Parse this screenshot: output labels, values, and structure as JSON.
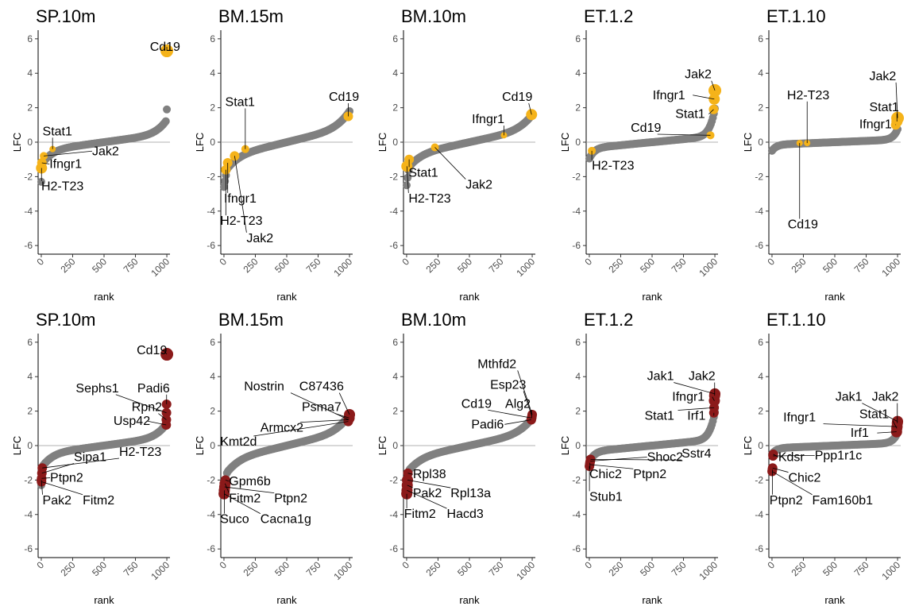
{
  "chart_data": [
    {
      "type": "scatter",
      "title": "SP.10m",
      "xlabel": "rank",
      "ylabel": "LFC",
      "xlim": [
        -25,
        1025
      ],
      "ylim": [
        -6.5,
        6.5
      ],
      "xticks": [
        0,
        250,
        500,
        750,
        1000
      ],
      "yticks": [
        -6,
        -4,
        -2,
        0,
        2,
        4,
        6
      ],
      "hline": 0,
      "highlight_color": "#F5B31A",
      "curve": "sp10m",
      "highlight": [
        {
          "label": "Cd19",
          "x": 1000,
          "y": 5.3,
          "r": 8
        },
        {
          "label": "Stat1",
          "x": 90,
          "y": -0.4,
          "r": 4
        },
        {
          "label": "Jak2",
          "x": 20,
          "y": -0.8,
          "r": 5
        },
        {
          "label": "Ifngr1",
          "x": 5,
          "y": -1.2,
          "r": 6
        },
        {
          "label": "H2-T23",
          "x": 2,
          "y": -1.5,
          "r": 7
        }
      ],
      "labels": [
        {
          "text": "Cd19",
          "x": 865,
          "y": 5.3
        },
        {
          "text": "Stat1",
          "x": 10,
          "y": 0.4
        },
        {
          "text": "Jak2",
          "x": 405,
          "y": -0.75
        },
        {
          "text": "Ifngr1",
          "x": 65,
          "y": -1.5
        },
        {
          "text": "H2-T23",
          "x": 0,
          "y": -2.8
        }
      ]
    },
    {
      "type": "scatter",
      "title": "BM.15m",
      "xlabel": "rank",
      "ylabel": "LFC",
      "xlim": [
        -25,
        1025
      ],
      "ylim": [
        -6.5,
        6.5
      ],
      "xticks": [
        0,
        250,
        500,
        750,
        1000
      ],
      "yticks": [
        -6,
        -4,
        -2,
        0,
        2,
        4,
        6
      ],
      "hline": 0,
      "highlight_color": "#F5B31A",
      "curve": "bm15m",
      "highlight": [
        {
          "label": "Cd19",
          "x": 990,
          "y": 1.5,
          "r": 6
        },
        {
          "label": "Stat1",
          "x": 170,
          "y": -0.4,
          "r": 5
        },
        {
          "label": "Jak2",
          "x": 85,
          "y": -0.8,
          "r": 6
        },
        {
          "label": "Ifngr1",
          "x": 30,
          "y": -1.2,
          "r": 6
        },
        {
          "label": "H2-T23",
          "x": 15,
          "y": -1.6,
          "r": 6
        }
      ],
      "labels": [
        {
          "text": "Cd19",
          "x": 835,
          "y": 2.4
        },
        {
          "text": "Stat1",
          "x": 10,
          "y": 2.1
        },
        {
          "text": "Ifngr1",
          "x": 0,
          "y": -3.5
        },
        {
          "text": "H2-T23",
          "x": -30,
          "y": -4.8
        },
        {
          "text": "Jak2",
          "x": 180,
          "y": -5.8
        }
      ]
    },
    {
      "type": "scatter",
      "title": "BM.10m",
      "xlabel": "rank",
      "ylabel": "LFC",
      "xlim": [
        -25,
        1025
      ],
      "ylim": [
        -6.5,
        6.5
      ],
      "xticks": [
        0,
        250,
        500,
        750,
        1000
      ],
      "yticks": [
        -6,
        -4,
        -2,
        0,
        2,
        4,
        6
      ],
      "hline": 0,
      "highlight_color": "#F5B31A",
      "curve": "bm10m",
      "highlight": [
        {
          "label": "Cd19",
          "x": 995,
          "y": 1.6,
          "r": 7
        },
        {
          "label": "Ifngr1",
          "x": 775,
          "y": 0.4,
          "r": 4
        },
        {
          "label": "Jak2",
          "x": 225,
          "y": -0.3,
          "r": 5
        },
        {
          "label": "Stat1",
          "x": 20,
          "y": -1.0,
          "r": 6
        },
        {
          "label": "H2-T23",
          "x": 2,
          "y": -1.4,
          "r": 7
        }
      ],
      "labels": [
        {
          "text": "Cd19",
          "x": 760,
          "y": 2.4
        },
        {
          "text": "Ifngr1",
          "x": 520,
          "y": 1.1
        },
        {
          "text": "Jak2",
          "x": 470,
          "y": -2.7
        },
        {
          "text": "Stat1",
          "x": 15,
          "y": -2.0
        },
        {
          "text": "H2-T23",
          "x": 15,
          "y": -3.5
        }
      ]
    },
    {
      "type": "scatter",
      "title": "ET.1.2",
      "xlabel": "rank",
      "ylabel": "LFC",
      "xlim": [
        -25,
        1025
      ],
      "ylim": [
        -6.5,
        6.5
      ],
      "xticks": [
        0,
        250,
        500,
        750,
        1000
      ],
      "yticks": [
        -6,
        -4,
        -2,
        0,
        2,
        4,
        6
      ],
      "hline": 0,
      "highlight_color": "#F5B31A",
      "curve": "et12",
      "highlight": [
        {
          "label": "Jak2",
          "x": 1000,
          "y": 3.0,
          "r": 8
        },
        {
          "label": "Ifngr1",
          "x": 995,
          "y": 2.5,
          "r": 7
        },
        {
          "label": "Stat1",
          "x": 990,
          "y": 1.9,
          "r": 6
        },
        {
          "label": "Cd19",
          "x": 965,
          "y": 0.4,
          "r": 5
        },
        {
          "label": "H2-T23",
          "x": 20,
          "y": -0.5,
          "r": 5
        }
      ],
      "labels": [
        {
          "text": "Jak2",
          "x": 760,
          "y": 3.7
        },
        {
          "text": "Ifngr1",
          "x": 505,
          "y": 2.5
        },
        {
          "text": "Stat1",
          "x": 685,
          "y": 1.4
        },
        {
          "text": "Cd19",
          "x": 330,
          "y": 0.6
        },
        {
          "text": "H2-T23",
          "x": 20,
          "y": -1.6
        }
      ]
    },
    {
      "type": "scatter",
      "title": "ET.1.10",
      "xlabel": "rank",
      "ylabel": "LFC",
      "xlim": [
        -25,
        1025
      ],
      "ylim": [
        -6.5,
        6.5
      ],
      "xticks": [
        0,
        250,
        500,
        750,
        1000
      ],
      "yticks": [
        -6,
        -4,
        -2,
        0,
        2,
        4,
        6
      ],
      "hline": 0,
      "highlight_color": "#F5B31A",
      "curve": "et110",
      "highlight": [
        {
          "label": "Jak2",
          "x": 1000,
          "y": 1.4,
          "r": 8
        },
        {
          "label": "Stat1",
          "x": 995,
          "y": 1.2,
          "r": 7
        },
        {
          "label": "Ifngr1",
          "x": 985,
          "y": 1.0,
          "r": 6
        },
        {
          "label": "H2-T23",
          "x": 280,
          "y": -0.05,
          "r": 4
        },
        {
          "label": "Cd19",
          "x": 220,
          "y": -0.05,
          "r": 4
        }
      ],
      "labels": [
        {
          "text": "Jak2",
          "x": 775,
          "y": 3.6
        },
        {
          "text": "H2-T23",
          "x": 120,
          "y": 2.5
        },
        {
          "text": "Stat1",
          "x": 775,
          "y": 1.8
        },
        {
          "text": "Ifngr1",
          "x": 695,
          "y": 0.8
        },
        {
          "text": "Cd19",
          "x": 125,
          "y": -5.0
        }
      ]
    },
    {
      "type": "scatter",
      "title": "SP.10m",
      "xlabel": "rank",
      "ylabel": "LFC",
      "xlim": [
        -25,
        1025
      ],
      "ylim": [
        -6.5,
        6.5
      ],
      "xticks": [
        0,
        250,
        500,
        750,
        1000
      ],
      "yticks": [
        -6,
        -4,
        -2,
        0,
        2,
        4,
        6
      ],
      "hline": 0,
      "highlight_color": "#8B1A1A",
      "curve": "sp10m",
      "highlight": [
        {
          "label": "Cd19",
          "x": 1000,
          "y": 5.3,
          "r": 8
        },
        {
          "label": "Padi6",
          "x": 998,
          "y": 2.4,
          "r": 6
        },
        {
          "label": "Sephs1",
          "x": 997,
          "y": 1.9,
          "r": 6
        },
        {
          "label": "Rpn2",
          "x": 996,
          "y": 1.5,
          "r": 6
        },
        {
          "label": "Usp42",
          "x": 995,
          "y": 1.2,
          "r": 6
        },
        {
          "label": "H2-T23",
          "x": 8,
          "y": -1.3,
          "r": 6
        },
        {
          "label": "Sipa1",
          "x": 5,
          "y": -1.6,
          "r": 6
        },
        {
          "label": "Ptpn2",
          "x": 3,
          "y": -1.9,
          "r": 6
        },
        {
          "label": "Pak2",
          "x": 1,
          "y": -2.0,
          "r": 6
        },
        {
          "label": "Fitm2",
          "x": 2,
          "y": -2.1,
          "r": 6
        }
      ],
      "labels": [
        {
          "text": "Cd19",
          "x": 760,
          "y": 5.3
        },
        {
          "text": "Sephs1",
          "x": 275,
          "y": 3.1
        },
        {
          "text": "Padi6",
          "x": 765,
          "y": 3.1
        },
        {
          "text": "Rpn2",
          "x": 720,
          "y": 2.0
        },
        {
          "text": "Usp42",
          "x": 575,
          "y": 1.2
        },
        {
          "text": "Sipa1",
          "x": 260,
          "y": -0.9
        },
        {
          "text": "H2-T23",
          "x": 620,
          "y": -0.6
        },
        {
          "text": "Ptpn2",
          "x": 70,
          "y": -2.1
        },
        {
          "text": "Pak2",
          "x": 10,
          "y": -3.4
        },
        {
          "text": "Fitm2",
          "x": 330,
          "y": -3.4
        }
      ]
    },
    {
      "type": "scatter",
      "title": "BM.15m",
      "xlabel": "rank",
      "ylabel": "LFC",
      "xlim": [
        -25,
        1025
      ],
      "ylim": [
        -6.5,
        6.5
      ],
      "xticks": [
        0,
        250,
        500,
        750,
        1000
      ],
      "yticks": [
        -6,
        -4,
        -2,
        0,
        2,
        4,
        6
      ],
      "hline": 0,
      "highlight_color": "#8B1A1A",
      "curve": "bm15m",
      "highlight": [
        {
          "label": "C87436",
          "x": 1000,
          "y": 1.8,
          "r": 7
        },
        {
          "label": "Psma7",
          "x": 997,
          "y": 1.6,
          "r": 7
        },
        {
          "label": "Nostrin",
          "x": 995,
          "y": 1.5,
          "r": 6
        },
        {
          "label": "Armcx2",
          "x": 993,
          "y": 1.5,
          "r": 6
        },
        {
          "label": "Kmt2d",
          "x": 990,
          "y": 1.4,
          "r": 6
        },
        {
          "label": "Gpm6b",
          "x": 12,
          "y": -2.0,
          "r": 6
        },
        {
          "label": "Fitm2",
          "x": 9,
          "y": -2.2,
          "r": 7
        },
        {
          "label": "Ptpn2",
          "x": 6,
          "y": -2.4,
          "r": 7
        },
        {
          "label": "Suco",
          "x": 3,
          "y": -2.6,
          "r": 7
        },
        {
          "label": "Cacna1g",
          "x": 1,
          "y": -2.8,
          "r": 7
        }
      ],
      "labels": [
        {
          "text": "Nostrin",
          "x": 160,
          "y": 3.2
        },
        {
          "text": "C87436",
          "x": 600,
          "y": 3.2
        },
        {
          "text": "Psma7",
          "x": 620,
          "y": 2.0
        },
        {
          "text": "Armcx2",
          "x": 290,
          "y": 0.8
        },
        {
          "text": "Kmt2d",
          "x": -30,
          "y": 0.0
        },
        {
          "text": "Gpm6b",
          "x": 40,
          "y": -2.3
        },
        {
          "text": "Fitm2",
          "x": 40,
          "y": -3.3
        },
        {
          "text": "Ptpn2",
          "x": 400,
          "y": -3.3
        },
        {
          "text": "Suco",
          "x": -30,
          "y": -4.5
        },
        {
          "text": "Cacna1g",
          "x": 290,
          "y": -4.5
        }
      ]
    },
    {
      "type": "scatter",
      "title": "BM.10m",
      "xlabel": "rank",
      "ylabel": "LFC",
      "xlim": [
        -25,
        1025
      ],
      "ylim": [
        -6.5,
        6.5
      ],
      "xticks": [
        0,
        250,
        500,
        750,
        1000
      ],
      "yticks": [
        -6,
        -4,
        -2,
        0,
        2,
        4,
        6
      ],
      "hline": 0,
      "highlight_color": "#8B1A1A",
      "curve": "bm10m",
      "highlight": [
        {
          "label": "Mthfd2",
          "x": 1000,
          "y": 1.8,
          "r": 6
        },
        {
          "label": "Esp23",
          "x": 998,
          "y": 1.7,
          "r": 6
        },
        {
          "label": "Alg2",
          "x": 996,
          "y": 1.6,
          "r": 6
        },
        {
          "label": "Cd19",
          "x": 995,
          "y": 1.6,
          "r": 6
        },
        {
          "label": "Padi6",
          "x": 993,
          "y": 1.5,
          "r": 6
        },
        {
          "label": "Rpl38",
          "x": 10,
          "y": -1.6,
          "r": 6
        },
        {
          "label": "Rpl13a",
          "x": 7,
          "y": -2.0,
          "r": 7
        },
        {
          "label": "Pak2",
          "x": 5,
          "y": -2.3,
          "r": 7
        },
        {
          "label": "Hacd3",
          "x": 3,
          "y": -2.6,
          "r": 7
        },
        {
          "label": "Fitm2",
          "x": 1,
          "y": -2.8,
          "r": 7
        }
      ],
      "labels": [
        {
          "text": "Mthfd2",
          "x": 565,
          "y": 4.5
        },
        {
          "text": "Esp23",
          "x": 665,
          "y": 3.3
        },
        {
          "text": "Cd19",
          "x": 435,
          "y": 2.2
        },
        {
          "text": "Alg2",
          "x": 785,
          "y": 2.2
        },
        {
          "text": "Padi6",
          "x": 515,
          "y": 1.0
        },
        {
          "text": "Rpl38",
          "x": 50,
          "y": -1.9
        },
        {
          "text": "Pak2",
          "x": 50,
          "y": -3.0
        },
        {
          "text": "Rpl13a",
          "x": 350,
          "y": -3.0
        },
        {
          "text": "Fitm2",
          "x": -20,
          "y": -4.2
        },
        {
          "text": "Hacd3",
          "x": 320,
          "y": -4.2
        }
      ]
    },
    {
      "type": "scatter",
      "title": "ET.1.2",
      "xlabel": "rank",
      "ylabel": "LFC",
      "xlim": [
        -25,
        1025
      ],
      "ylim": [
        -6.5,
        6.5
      ],
      "xticks": [
        0,
        250,
        500,
        750,
        1000
      ],
      "yticks": [
        -6,
        -4,
        -2,
        0,
        2,
        4,
        6
      ],
      "hline": 0,
      "highlight_color": "#8B1A1A",
      "curve": "et12",
      "highlight": [
        {
          "label": "Jak1",
          "x": 1000,
          "y": 3.0,
          "r": 7
        },
        {
          "label": "Jak2",
          "x": 998,
          "y": 2.9,
          "r": 7
        },
        {
          "label": "Ifngr1",
          "x": 996,
          "y": 2.6,
          "r": 7
        },
        {
          "label": "Stat1",
          "x": 994,
          "y": 2.2,
          "r": 6
        },
        {
          "label": "Irf1",
          "x": 992,
          "y": 1.9,
          "r": 6
        },
        {
          "label": "Sstr4",
          "x": 10,
          "y": -0.8,
          "r": 6
        },
        {
          "label": "Shoc2",
          "x": 8,
          "y": -0.9,
          "r": 6
        },
        {
          "label": "Chic2",
          "x": 5,
          "y": -1.0,
          "r": 6
        },
        {
          "label": "Ptpn2",
          "x": 3,
          "y": -1.1,
          "r": 6
        },
        {
          "label": "Stub1",
          "x": 1,
          "y": -1.2,
          "r": 6
        }
      ],
      "labels": [
        {
          "text": "Jak1",
          "x": 460,
          "y": 3.8
        },
        {
          "text": "Jak2",
          "x": 790,
          "y": 3.8
        },
        {
          "text": "Ifngr1",
          "x": 660,
          "y": 2.6
        },
        {
          "text": "Stat1",
          "x": 440,
          "y": 1.5
        },
        {
          "text": "Irf1",
          "x": 780,
          "y": 1.5
        },
        {
          "text": "Shoc2",
          "x": 460,
          "y": -0.9
        },
        {
          "text": "Sstr4",
          "x": 735,
          "y": -0.7
        },
        {
          "text": "Chic2",
          "x": 0,
          "y": -1.9
        },
        {
          "text": "Ptpn2",
          "x": 350,
          "y": -1.9
        },
        {
          "text": "Stub1",
          "x": 0,
          "y": -3.2
        }
      ]
    },
    {
      "type": "scatter",
      "title": "ET.1.10",
      "xlabel": "rank",
      "ylabel": "LFC",
      "xlim": [
        -25,
        1025
      ],
      "ylim": [
        -6.5,
        6.5
      ],
      "xticks": [
        0,
        250,
        500,
        750,
        1000
      ],
      "yticks": [
        -6,
        -4,
        -2,
        0,
        2,
        4,
        6
      ],
      "hline": 0,
      "highlight_color": "#8B1A1A",
      "curve": "et110",
      "highlight": [
        {
          "label": "Jak1",
          "x": 1000,
          "y": 1.4,
          "r": 7
        },
        {
          "label": "Jak2",
          "x": 998,
          "y": 1.3,
          "r": 7
        },
        {
          "label": "Ifngr1",
          "x": 996,
          "y": 1.1,
          "r": 7
        },
        {
          "label": "Stat1",
          "x": 994,
          "y": 1.0,
          "r": 7
        },
        {
          "label": "Irf1",
          "x": 992,
          "y": 0.8,
          "r": 7
        },
        {
          "label": "Kdsr",
          "x": 10,
          "y": -0.5,
          "r": 6
        },
        {
          "label": "Ppp1r1c",
          "x": 8,
          "y": -0.6,
          "r": 6
        },
        {
          "label": "Chic2",
          "x": 5,
          "y": -1.3,
          "r": 6
        },
        {
          "label": "Ptpn2",
          "x": 3,
          "y": -1.4,
          "r": 6
        },
        {
          "label": "Fam160b1",
          "x": 1,
          "y": -1.5,
          "r": 6
        }
      ],
      "labels": [
        {
          "text": "Jak1",
          "x": 505,
          "y": 2.6
        },
        {
          "text": "Jak2",
          "x": 795,
          "y": 2.6
        },
        {
          "text": "Ifngr1",
          "x": 90,
          "y": 1.4
        },
        {
          "text": "Stat1",
          "x": 695,
          "y": 1.6
        },
        {
          "text": "Irf1",
          "x": 625,
          "y": 0.5
        },
        {
          "text": "Kdsr",
          "x": 50,
          "y": -0.9
        },
        {
          "text": "Ppp1r1c",
          "x": 340,
          "y": -0.8
        },
        {
          "text": "Chic2",
          "x": 130,
          "y": -2.1
        },
        {
          "text": "Ptpn2",
          "x": -20,
          "y": -3.4
        },
        {
          "text": "Fam160b1",
          "x": 320,
          "y": -3.4
        }
      ]
    }
  ]
}
